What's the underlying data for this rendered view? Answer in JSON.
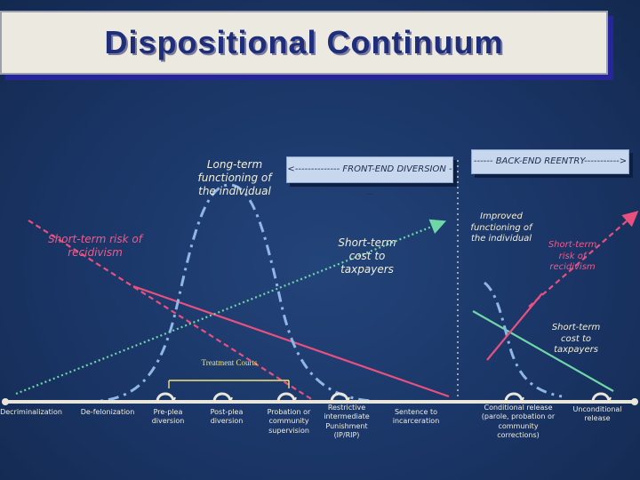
{
  "title": "Dispositional Continuum",
  "labels": {
    "long_term_functioning": "Long-term functioning of the individual",
    "short_term_risk_left": "Short-term risk of recidivism",
    "short_term_cost_left": "Short-term cost to taxpayers",
    "front_end_box": "<-------------- FRONT-END DIVERSION ---",
    "back_end_box": "------ BACK-END REENTRY----------->",
    "improved_functioning": "Improved functioning of the individual",
    "short_term_risk_right": "Short-term risk of recidivism",
    "short_term_cost_right": "Short-term cost to taxpayers",
    "treatment_courts": "Treatment Courts"
  },
  "stages": [
    "Decriminalization",
    "De-felonization",
    "Pre-plea diversion",
    "Post-plea diversion",
    "Probation or community supervision",
    "Restrictive intermediate Punishment (IP/RIP)",
    "Sentence to incarceration",
    "Conditional release (parole, probation or community corrections)",
    "Unconditional release"
  ],
  "colors": {
    "background": "#1a3566",
    "title_box": "#ece9e1",
    "title_text": "#1e2e7a",
    "risk_line": "#e8507e",
    "cost_line": "#6fd6a6",
    "functioning_curve": "#8fb7e6",
    "label_pink": "#f15a8a",
    "label_cream": "#f3efd5",
    "treatment_text": "#f3e27a"
  }
}
